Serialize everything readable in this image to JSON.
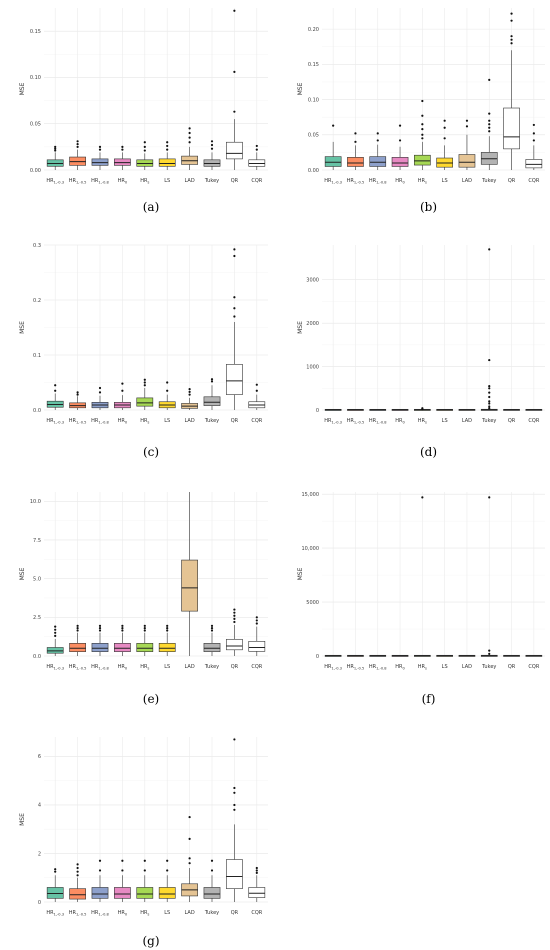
{
  "colors": {
    "HR_lin03": "#66C2A5",
    "HR_lin05": "#FC8D62",
    "HR_lin08": "#8DA0CB",
    "HR_0": "#E78AC3",
    "HR_s": "#A6D854",
    "LS": "#FFD92F",
    "LAD": "#E5C494",
    "Tukey": "#B3B3B3",
    "QR": "#FFFFFF",
    "CQR": "#FFFFFF"
  },
  "chart_data": [
    {
      "type": "boxplot",
      "panel": "(a)",
      "ylabel": "MSE",
      "categories": [
        "HR_{1,-0.3}",
        "HR_{1,-0.5}",
        "HR_{1,-0.8}",
        "HR_0",
        "HR_s",
        "LS",
        "LAD",
        "Tukey",
        "QR",
        "CQR"
      ],
      "category_keys": [
        "HR_lin03",
        "HR_lin05",
        "HR_lin08",
        "HR_0",
        "HR_s",
        "LS",
        "LAD",
        "Tukey",
        "QR",
        "CQR"
      ],
      "ylim": [
        0,
        0.175
      ],
      "yticks": [
        0,
        0.05,
        0.1,
        0.15
      ],
      "ytick_labels": [
        "0.00",
        "0.05",
        "0.10",
        "0.15"
      ],
      "boxes": [
        {
          "min": 0.0,
          "q1": 0.004,
          "median": 0.007,
          "q3": 0.011,
          "max": 0.019,
          "outliers": [
            0.021,
            0.023,
            0.025
          ]
        },
        {
          "min": 0.0,
          "q1": 0.005,
          "median": 0.009,
          "q3": 0.014,
          "max": 0.022,
          "outliers": [
            0.025,
            0.028,
            0.031
          ]
        },
        {
          "min": 0.0,
          "q1": 0.005,
          "median": 0.008,
          "q3": 0.012,
          "max": 0.019,
          "outliers": [
            0.022,
            0.025
          ]
        },
        {
          "min": 0.0,
          "q1": 0.005,
          "median": 0.008,
          "q3": 0.012,
          "max": 0.019,
          "outliers": [
            0.022,
            0.025
          ]
        },
        {
          "min": 0.0,
          "q1": 0.004,
          "median": 0.007,
          "q3": 0.011,
          "max": 0.018,
          "outliers": [
            0.021,
            0.025,
            0.03
          ]
        },
        {
          "min": 0.0,
          "q1": 0.004,
          "median": 0.007,
          "q3": 0.012,
          "max": 0.019,
          "outliers": [
            0.022,
            0.026,
            0.03
          ]
        },
        {
          "min": 0.0,
          "q1": 0.006,
          "median": 0.01,
          "q3": 0.015,
          "max": 0.025,
          "outliers": [
            0.03,
            0.035,
            0.04,
            0.045
          ]
        },
        {
          "min": 0.0,
          "q1": 0.004,
          "median": 0.007,
          "q3": 0.011,
          "max": 0.019,
          "outliers": [
            0.023,
            0.027,
            0.031
          ]
        },
        {
          "min": 0.0,
          "q1": 0.012,
          "median": 0.018,
          "q3": 0.03,
          "max": 0.055,
          "outliers": [
            0.063,
            0.106,
            0.172
          ]
        },
        {
          "min": 0.0,
          "q1": 0.004,
          "median": 0.007,
          "q3": 0.011,
          "max": 0.019,
          "outliers": [
            0.022,
            0.026
          ]
        }
      ]
    },
    {
      "type": "boxplot",
      "panel": "(b)",
      "ylabel": "MSE",
      "categories": [
        "HR_{1,-0.3}",
        "HR_{1,-0.5}",
        "HR_{1,-0.8}",
        "HR_0",
        "HR_s",
        "LS",
        "LAD",
        "Tukey",
        "QR",
        "CQR"
      ],
      "category_keys": [
        "HR_lin03",
        "HR_lin05",
        "HR_lin08",
        "HR_0",
        "HR_s",
        "LS",
        "LAD",
        "Tukey",
        "QR",
        "CQR"
      ],
      "ylim": [
        0,
        0.23
      ],
      "yticks": [
        0,
        0.05,
        0.1,
        0.15,
        0.2
      ],
      "ytick_labels": [
        "0.00",
        "0.05",
        "0.10",
        "0.15",
        "0.20"
      ],
      "boxes": [
        {
          "min": 0.0,
          "q1": 0.005,
          "median": 0.011,
          "q3": 0.019,
          "max": 0.04,
          "outliers": [
            0.063
          ]
        },
        {
          "min": 0.0,
          "q1": 0.005,
          "median": 0.01,
          "q3": 0.018,
          "max": 0.035,
          "outliers": [
            0.04,
            0.052
          ]
        },
        {
          "min": 0.0,
          "q1": 0.005,
          "median": 0.011,
          "q3": 0.019,
          "max": 0.036,
          "outliers": [
            0.042,
            0.052
          ]
        },
        {
          "min": 0.0,
          "q1": 0.005,
          "median": 0.01,
          "q3": 0.018,
          "max": 0.033,
          "outliers": [
            0.042,
            0.063
          ]
        },
        {
          "min": 0.0,
          "q1": 0.007,
          "median": 0.013,
          "q3": 0.021,
          "max": 0.04,
          "outliers": [
            0.045,
            0.05,
            0.058,
            0.065,
            0.077,
            0.098
          ]
        },
        {
          "min": 0.0,
          "q1": 0.004,
          "median": 0.01,
          "q3": 0.017,
          "max": 0.035,
          "outliers": [
            0.045,
            0.06,
            0.07
          ]
        },
        {
          "min": 0.0,
          "q1": 0.004,
          "median": 0.011,
          "q3": 0.022,
          "max": 0.05,
          "outliers": [
            0.062,
            0.07
          ]
        },
        {
          "min": 0.0,
          "q1": 0.008,
          "median": 0.016,
          "q3": 0.025,
          "max": 0.048,
          "outliers": [
            0.055,
            0.06,
            0.065,
            0.07,
            0.08,
            0.128
          ]
        },
        {
          "min": 0.0,
          "q1": 0.03,
          "median": 0.047,
          "q3": 0.088,
          "max": 0.17,
          "outliers": [
            0.18,
            0.185,
            0.19,
            0.212,
            0.222
          ]
        },
        {
          "min": 0.0,
          "q1": 0.003,
          "median": 0.008,
          "q3": 0.015,
          "max": 0.035,
          "outliers": [
            0.042,
            0.052,
            0.064
          ]
        }
      ]
    },
    {
      "type": "boxplot",
      "panel": "(c)",
      "ylabel": "MSE",
      "categories": [
        "HR_{1,-0.3}",
        "HR_{1,-0.5}",
        "HR_{1,-0.8}",
        "HR_0",
        "HR_s",
        "LS",
        "LAD",
        "Tukey",
        "QR",
        "CQR"
      ],
      "category_keys": [
        "HR_lin03",
        "HR_lin05",
        "HR_lin08",
        "HR_0",
        "HR_s",
        "LS",
        "LAD",
        "Tukey",
        "QR",
        "CQR"
      ],
      "ylim": [
        0,
        0.3
      ],
      "yticks": [
        0,
        0.1,
        0.2,
        0.3
      ],
      "ytick_labels": [
        "0.0",
        "0.1",
        "0.2",
        "0.3"
      ],
      "boxes": [
        {
          "min": 0.0,
          "q1": 0.005,
          "median": 0.01,
          "q3": 0.016,
          "max": 0.03,
          "outliers": [
            0.035,
            0.045
          ]
        },
        {
          "min": 0.0,
          "q1": 0.004,
          "median": 0.008,
          "q3": 0.013,
          "max": 0.025,
          "outliers": [
            0.028,
            0.032
          ]
        },
        {
          "min": 0.0,
          "q1": 0.004,
          "median": 0.009,
          "q3": 0.014,
          "max": 0.026,
          "outliers": [
            0.032,
            0.04
          ]
        },
        {
          "min": 0.0,
          "q1": 0.004,
          "median": 0.009,
          "q3": 0.014,
          "max": 0.027,
          "outliers": [
            0.035,
            0.048
          ]
        },
        {
          "min": 0.0,
          "q1": 0.007,
          "median": 0.013,
          "q3": 0.022,
          "max": 0.04,
          "outliers": [
            0.045,
            0.05,
            0.055
          ]
        },
        {
          "min": 0.0,
          "q1": 0.004,
          "median": 0.009,
          "q3": 0.015,
          "max": 0.028,
          "outliers": [
            0.035,
            0.05
          ]
        },
        {
          "min": 0.0,
          "q1": 0.003,
          "median": 0.007,
          "q3": 0.012,
          "max": 0.022,
          "outliers": [
            0.028,
            0.033,
            0.038
          ]
        },
        {
          "min": 0.0,
          "q1": 0.008,
          "median": 0.014,
          "q3": 0.024,
          "max": 0.045,
          "outliers": [
            0.052,
            0.056
          ]
        },
        {
          "min": 0.0,
          "q1": 0.028,
          "median": 0.053,
          "q3": 0.083,
          "max": 0.16,
          "outliers": [
            0.17,
            0.185,
            0.205,
            0.28,
            0.292
          ]
        },
        {
          "min": 0.0,
          "q1": 0.004,
          "median": 0.009,
          "q3": 0.015,
          "max": 0.028,
          "outliers": [
            0.035,
            0.046
          ]
        }
      ]
    },
    {
      "type": "boxplot",
      "panel": "(d)",
      "ylabel": "MSE",
      "categories": [
        "HR_{1,-0.3}",
        "HR_{1,-0.5}",
        "HR_{1,-0.8}",
        "HR_0",
        "HR_s",
        "LS",
        "LAD",
        "Tukey",
        "QR",
        "CQR"
      ],
      "category_keys": [
        "HR_lin03",
        "HR_lin05",
        "HR_lin08",
        "HR_0",
        "HR_s",
        "LS",
        "LAD",
        "Tukey",
        "QR",
        "CQR"
      ],
      "ylim": [
        0,
        3800
      ],
      "yticks": [
        0,
        1000,
        2000,
        3000
      ],
      "ytick_labels": [
        "0",
        "1000",
        "2000",
        "3000"
      ],
      "boxes": [
        {
          "min": 0,
          "q1": 1,
          "median": 2,
          "q3": 4,
          "max": 8,
          "outliers": []
        },
        {
          "min": 0,
          "q1": 1,
          "median": 2,
          "q3": 4,
          "max": 8,
          "outliers": []
        },
        {
          "min": 0,
          "q1": 1,
          "median": 2,
          "q3": 4,
          "max": 8,
          "outliers": []
        },
        {
          "min": 0,
          "q1": 1,
          "median": 2,
          "q3": 4,
          "max": 8,
          "outliers": []
        },
        {
          "min": 0,
          "q1": 1,
          "median": 2,
          "q3": 4,
          "max": 8,
          "outliers": [
            20,
            40
          ]
        },
        {
          "min": 0,
          "q1": 1,
          "median": 2,
          "q3": 4,
          "max": 8,
          "outliers": []
        },
        {
          "min": 0,
          "q1": 1,
          "median": 2,
          "q3": 4,
          "max": 8,
          "outliers": []
        },
        {
          "min": 0,
          "q1": 1,
          "median": 3,
          "q3": 6,
          "max": 15,
          "outliers": [
            40,
            80,
            150,
            200,
            300,
            400,
            500,
            550,
            1150,
            3700
          ]
        },
        {
          "min": 0,
          "q1": 1,
          "median": 2,
          "q3": 4,
          "max": 8,
          "outliers": []
        },
        {
          "min": 0,
          "q1": 1,
          "median": 2,
          "q3": 4,
          "max": 8,
          "outliers": []
        }
      ]
    },
    {
      "type": "boxplot",
      "panel": "(e)",
      "ylabel": "MSE",
      "categories": [
        "HR_{1,-0.3}",
        "HR_{1,-0.5}",
        "HR_{1,-0.8}",
        "HR_0",
        "HR_s",
        "LS",
        "LAD",
        "Tukey",
        "QR",
        "CQR"
      ],
      "category_keys": [
        "HR_lin03",
        "HR_lin05",
        "HR_lin08",
        "HR_0",
        "HR_s",
        "LS",
        "LAD",
        "Tukey",
        "QR",
        "CQR"
      ],
      "ylim": [
        0,
        10.6
      ],
      "yticks": [
        0,
        2.5,
        5.0,
        7.5,
        10.0
      ],
      "ytick_labels": [
        "0.0",
        "2.5",
        "5.0",
        "7.5",
        "10.0"
      ],
      "boxes": [
        {
          "min": 0.0,
          "q1": 0.18,
          "median": 0.33,
          "q3": 0.55,
          "max": 1.1,
          "outliers": [
            1.3,
            1.5,
            1.7,
            1.9
          ]
        },
        {
          "min": 0.0,
          "q1": 0.28,
          "median": 0.5,
          "q3": 0.82,
          "max": 1.5,
          "outliers": [
            1.65,
            1.8,
            1.95
          ]
        },
        {
          "min": 0.0,
          "q1": 0.28,
          "median": 0.5,
          "q3": 0.82,
          "max": 1.5,
          "outliers": [
            1.65,
            1.8,
            1.95
          ]
        },
        {
          "min": 0.0,
          "q1": 0.28,
          "median": 0.5,
          "q3": 0.82,
          "max": 1.5,
          "outliers": [
            1.65,
            1.8,
            1.95
          ]
        },
        {
          "min": 0.0,
          "q1": 0.28,
          "median": 0.5,
          "q3": 0.82,
          "max": 1.5,
          "outliers": [
            1.65,
            1.8,
            1.95
          ]
        },
        {
          "min": 0.0,
          "q1": 0.28,
          "median": 0.5,
          "q3": 0.82,
          "max": 1.5,
          "outliers": [
            1.65,
            1.8,
            1.95
          ]
        },
        {
          "min": 0.0,
          "q1": 2.9,
          "median": 4.4,
          "q3": 6.2,
          "max": 10.6,
          "outliers": []
        },
        {
          "min": 0.0,
          "q1": 0.28,
          "median": 0.5,
          "q3": 0.82,
          "max": 1.5,
          "outliers": [
            1.65,
            1.8,
            1.95
          ]
        },
        {
          "min": 0.0,
          "q1": 0.4,
          "median": 0.65,
          "q3": 1.08,
          "max": 2.0,
          "outliers": [
            2.2,
            2.4,
            2.6,
            2.8,
            3.0
          ]
        },
        {
          "min": 0.0,
          "q1": 0.3,
          "median": 0.55,
          "q3": 0.95,
          "max": 1.9,
          "outliers": [
            2.1,
            2.3,
            2.5
          ]
        }
      ]
    },
    {
      "type": "boxplot",
      "panel": "(f)",
      "ylabel": "MSE",
      "categories": [
        "HR_{1,-0.3}",
        "HR_{1,-0.5}",
        "HR_{1,-0.8}",
        "HR_0",
        "HR_s",
        "LS",
        "LAD",
        "Tukey",
        "QR",
        "CQR"
      ],
      "category_keys": [
        "HR_lin03",
        "HR_lin05",
        "HR_lin08",
        "HR_0",
        "HR_s",
        "LS",
        "LAD",
        "Tukey",
        "QR",
        "CQR"
      ],
      "ylim": [
        0,
        15200
      ],
      "yticks": [
        0,
        5000,
        10000,
        15000
      ],
      "ytick_labels": [
        "0",
        "5000",
        "10,000",
        "15,000"
      ],
      "boxes": [
        {
          "min": 0,
          "q1": 5,
          "median": 10,
          "q3": 20,
          "max": 40,
          "outliers": []
        },
        {
          "min": 0,
          "q1": 5,
          "median": 10,
          "q3": 20,
          "max": 40,
          "outliers": []
        },
        {
          "min": 0,
          "q1": 5,
          "median": 10,
          "q3": 20,
          "max": 40,
          "outliers": []
        },
        {
          "min": 0,
          "q1": 5,
          "median": 10,
          "q3": 20,
          "max": 40,
          "outliers": []
        },
        {
          "min": 0,
          "q1": 5,
          "median": 10,
          "q3": 20,
          "max": 40,
          "outliers": [
            14700
          ]
        },
        {
          "min": 0,
          "q1": 5,
          "median": 10,
          "q3": 20,
          "max": 40,
          "outliers": []
        },
        {
          "min": 0,
          "q1": 5,
          "median": 10,
          "q3": 20,
          "max": 40,
          "outliers": []
        },
        {
          "min": 0,
          "q1": 5,
          "median": 12,
          "q3": 25,
          "max": 50,
          "outliers": [
            200,
            500,
            14700
          ]
        },
        {
          "min": 0,
          "q1": 5,
          "median": 10,
          "q3": 20,
          "max": 40,
          "outliers": []
        },
        {
          "min": 0,
          "q1": 5,
          "median": 10,
          "q3": 20,
          "max": 40,
          "outliers": []
        }
      ]
    },
    {
      "type": "boxplot",
      "panel": "(g)",
      "ylabel": "MSE",
      "categories": [
        "HR_{1,-0.3}",
        "HR_{1,-0.5}",
        "HR_{1,-0.8}",
        "HR_0",
        "HR_s",
        "LS",
        "LAD",
        "Tukey",
        "QR",
        "CQR"
      ],
      "category_keys": [
        "HR_lin03",
        "HR_lin05",
        "HR_lin08",
        "HR_0",
        "HR_s",
        "LS",
        "LAD",
        "Tukey",
        "QR",
        "CQR"
      ],
      "ylim": [
        0,
        6.8
      ],
      "yticks": [
        0,
        2,
        4,
        6
      ],
      "ytick_labels": [
        "0",
        "2",
        "4",
        "6"
      ],
      "boxes": [
        {
          "min": 0.0,
          "q1": 0.15,
          "median": 0.35,
          "q3": 0.6,
          "max": 1.1,
          "outliers": [
            1.25,
            1.35
          ]
        },
        {
          "min": 0.0,
          "q1": 0.12,
          "median": 0.3,
          "q3": 0.55,
          "max": 1.0,
          "outliers": [
            1.1,
            1.25,
            1.4,
            1.55
          ]
        },
        {
          "min": 0.0,
          "q1": 0.15,
          "median": 0.33,
          "q3": 0.6,
          "max": 1.1,
          "outliers": [
            1.3,
            1.7
          ]
        },
        {
          "min": 0.0,
          "q1": 0.15,
          "median": 0.33,
          "q3": 0.6,
          "max": 1.1,
          "outliers": [
            1.3,
            1.7
          ]
        },
        {
          "min": 0.0,
          "q1": 0.15,
          "median": 0.33,
          "q3": 0.6,
          "max": 1.1,
          "outliers": [
            1.3,
            1.7
          ]
        },
        {
          "min": 0.0,
          "q1": 0.15,
          "median": 0.33,
          "q3": 0.6,
          "max": 1.1,
          "outliers": [
            1.3,
            1.7
          ]
        },
        {
          "min": 0.0,
          "q1": 0.25,
          "median": 0.5,
          "q3": 0.75,
          "max": 1.4,
          "outliers": [
            1.6,
            1.8,
            2.6,
            3.5
          ]
        },
        {
          "min": 0.0,
          "q1": 0.15,
          "median": 0.33,
          "q3": 0.6,
          "max": 1.1,
          "outliers": [
            1.3,
            1.7
          ]
        },
        {
          "min": 0.0,
          "q1": 0.55,
          "median": 1.05,
          "q3": 1.75,
          "max": 3.2,
          "outliers": [
            3.8,
            4.0,
            4.5,
            4.7,
            6.7
          ]
        },
        {
          "min": 0.0,
          "q1": 0.18,
          "median": 0.36,
          "q3": 0.6,
          "max": 1.1,
          "outliers": [
            1.2,
            1.3,
            1.4
          ]
        }
      ]
    }
  ]
}
